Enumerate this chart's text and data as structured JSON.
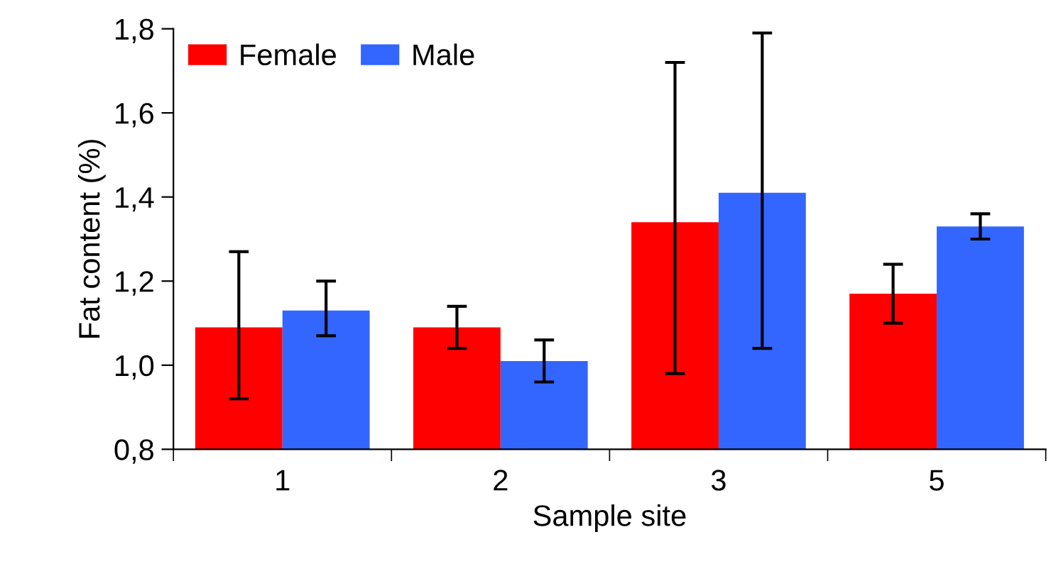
{
  "chart_data": {
    "type": "bar",
    "xlabel": "Sample site",
    "ylabel": "Fat content (%)",
    "categories": [
      "1",
      "2",
      "3",
      "5"
    ],
    "series": [
      {
        "name": "Female",
        "color": "#ff0000",
        "values": [
          1.09,
          1.09,
          1.34,
          1.17
        ],
        "errors": [
          [
            0.92,
            1.27
          ],
          [
            1.04,
            1.14
          ],
          [
            0.98,
            1.72
          ],
          [
            1.1,
            1.24
          ]
        ]
      },
      {
        "name": "Male",
        "color": "#3366ff",
        "values": [
          1.13,
          1.01,
          1.41,
          1.33
        ],
        "errors": [
          [
            1.07,
            1.2
          ],
          [
            0.96,
            1.06
          ],
          [
            1.04,
            1.79
          ],
          [
            1.3,
            1.36
          ]
        ]
      }
    ],
    "ylim": [
      0.8,
      1.8
    ],
    "yticks": [
      {
        "value": 0.8,
        "label": "0,8"
      },
      {
        "value": 1.0,
        "label": "1,0"
      },
      {
        "value": 1.2,
        "label": "1,2"
      },
      {
        "value": 1.4,
        "label": "1,4"
      },
      {
        "value": 1.6,
        "label": "1,6"
      },
      {
        "value": 1.8,
        "label": "1,8"
      }
    ],
    "grid": false,
    "legend": "top left"
  }
}
